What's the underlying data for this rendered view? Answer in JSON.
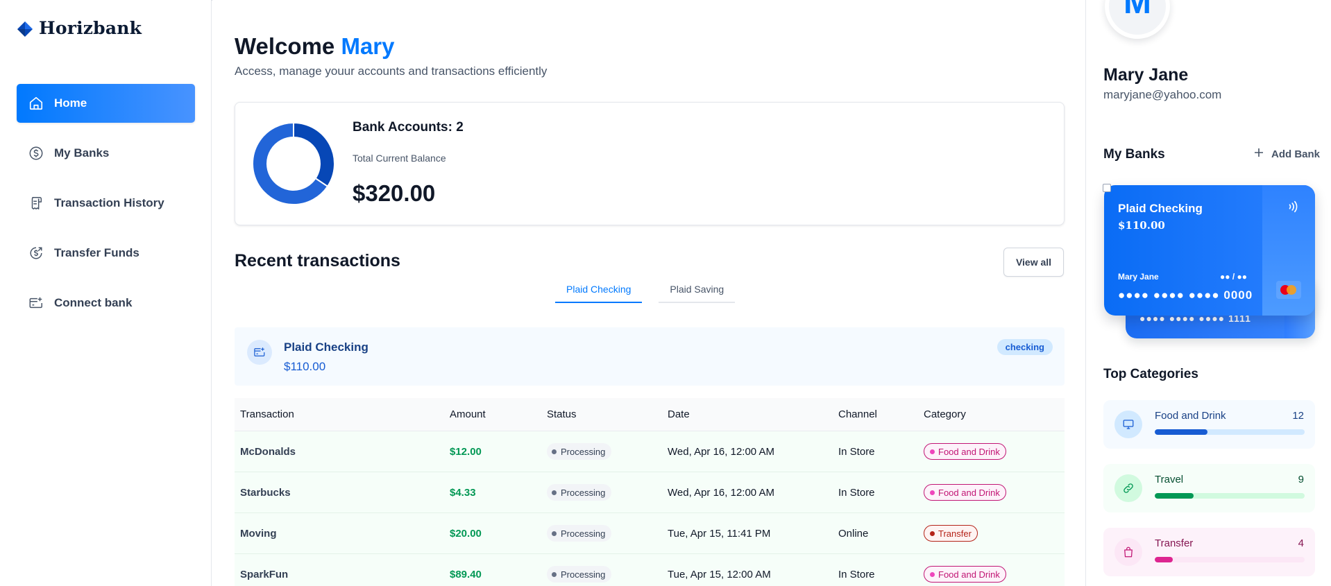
{
  "brand": {
    "name": "Horizbank"
  },
  "nav": [
    {
      "label": "Home",
      "icon": "home-icon",
      "active": true
    },
    {
      "label": "My Banks",
      "icon": "dollar-circle-icon",
      "active": false
    },
    {
      "label": "Transaction History",
      "icon": "receipt-icon",
      "active": false
    },
    {
      "label": "Transfer Funds",
      "icon": "money-send-icon",
      "active": false
    },
    {
      "label": "Connect bank",
      "icon": "card-add-icon",
      "active": false
    }
  ],
  "header": {
    "welcome": "Welcome",
    "user_first": "Mary",
    "subtitle": "Access, manage youur accounts and transactions efficiently"
  },
  "balance": {
    "accounts_label": "Bank Accounts: 2",
    "total_label": "Total Current Balance",
    "total_amount": "$320.00"
  },
  "chart_data": {
    "type": "pie",
    "categories": [
      "Plaid Checking",
      "Plaid Saving"
    ],
    "values": [
      110,
      210
    ],
    "colors": [
      "#0747b6",
      "#2265d8"
    ]
  },
  "recent": {
    "title": "Recent transactions",
    "view_all": "View all",
    "tabs": [
      "Plaid Checking",
      "Plaid Saving"
    ],
    "active_tab": 0,
    "account": {
      "name": "Plaid Checking",
      "balance": "$110.00",
      "badge": "checking"
    },
    "columns": [
      "Transaction",
      "Amount",
      "Status",
      "Date",
      "Channel",
      "Category"
    ],
    "rows": [
      {
        "name": "McDonalds",
        "amount": "$12.00",
        "status": "Processing",
        "date": "Wed, Apr 16, 12:00 AM",
        "channel": "In Store",
        "category": "Food and Drink",
        "cat_style": "food"
      },
      {
        "name": "Starbucks",
        "amount": "$4.33",
        "status": "Processing",
        "date": "Wed, Apr 16, 12:00 AM",
        "channel": "In Store",
        "category": "Food and Drink",
        "cat_style": "food"
      },
      {
        "name": "Moving",
        "amount": "$20.00",
        "status": "Processing",
        "date": "Tue, Apr 15, 11:41 PM",
        "channel": "Online",
        "category": "Transfer",
        "cat_style": "transfer"
      },
      {
        "name": "SparkFun",
        "amount": "$89.40",
        "status": "Processing",
        "date": "Tue, Apr 15, 12:00 AM",
        "channel": "In Store",
        "category": "Food and Drink",
        "cat_style": "food"
      }
    ]
  },
  "profile": {
    "initial": "M",
    "name": "Mary Jane",
    "email": "maryjane@yahoo.com"
  },
  "my_banks": {
    "title": "My Banks",
    "add_label": "Add Bank",
    "front_card": {
      "bank": "Plaid Checking",
      "amount": "$110.00",
      "holder": "Mary Jane",
      "expiry": "●● / ●●",
      "number": "●●●● ●●●● ●●●● 0000"
    },
    "back_card": {
      "number": "●●●● ●●●● ●●●● 1111"
    }
  },
  "top_categories": {
    "title": "Top Categories",
    "items": [
      {
        "name": "Food and Drink",
        "count": "12",
        "fraction": 0.35,
        "style": "blue",
        "icon": "monitor-icon"
      },
      {
        "name": "Travel",
        "count": "9",
        "fraction": 0.26,
        "style": "green",
        "icon": "link-icon"
      },
      {
        "name": "Transfer",
        "count": "4",
        "fraction": 0.12,
        "style": "pink",
        "icon": "shopping-bag-icon"
      }
    ]
  }
}
